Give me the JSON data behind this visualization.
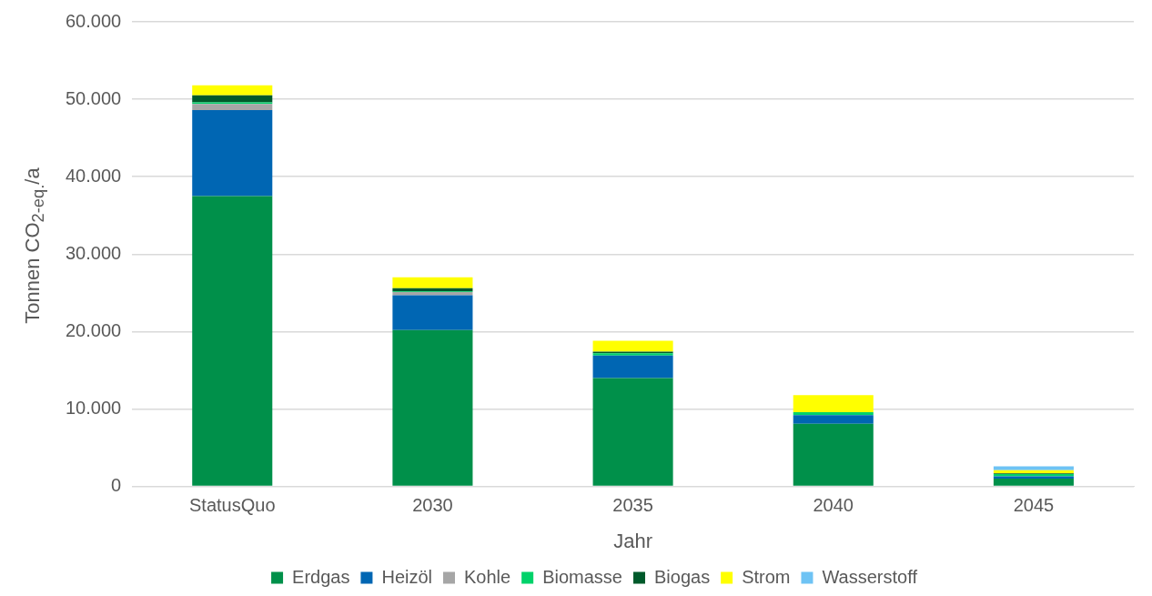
{
  "chart_data": {
    "type": "bar",
    "stacked": true,
    "xlabel": "Jahr",
    "ylabel": "Tonnen  CO$_{2-eq.}$/a",
    "categories": [
      "StatusQuo",
      "2030",
      "2035",
      "2040",
      "2045"
    ],
    "series": [
      {
        "name": "Erdgas",
        "color": "#00904a",
        "values": [
          37500,
          20200,
          14000,
          8100,
          1000
        ]
      },
      {
        "name": "Heizöl",
        "color": "#0066b3",
        "values": [
          11100,
          4500,
          2900,
          1100,
          300
        ]
      },
      {
        "name": "Kohle",
        "color": "#a6a6a6",
        "values": [
          800,
          400,
          0,
          0,
          0
        ]
      },
      {
        "name": "Biomasse",
        "color": "#00d26a",
        "values": [
          200,
          100,
          300,
          400,
          300
        ]
      },
      {
        "name": "Biogas",
        "color": "#005a2b",
        "values": [
          900,
          400,
          200,
          0,
          100
        ]
      },
      {
        "name": "Strom",
        "color": "#ffff00",
        "values": [
          1300,
          1400,
          1400,
          2200,
          400
        ]
      },
      {
        "name": "Wasserstoff",
        "color": "#6ec3f4",
        "values": [
          0,
          0,
          0,
          0,
          500
        ]
      }
    ],
    "ylim": [
      0,
      60000
    ],
    "yticks": [
      {
        "value": 0,
        "label": "0"
      },
      {
        "value": 10000,
        "label": "10.000"
      },
      {
        "value": 20000,
        "label": "20.000"
      },
      {
        "value": 30000,
        "label": "30.000"
      },
      {
        "value": 40000,
        "label": "40.000"
      },
      {
        "value": 50000,
        "label": "50.000"
      },
      {
        "value": 60000,
        "label": "60.000"
      }
    ],
    "grid": "y",
    "legend": "bottom"
  }
}
